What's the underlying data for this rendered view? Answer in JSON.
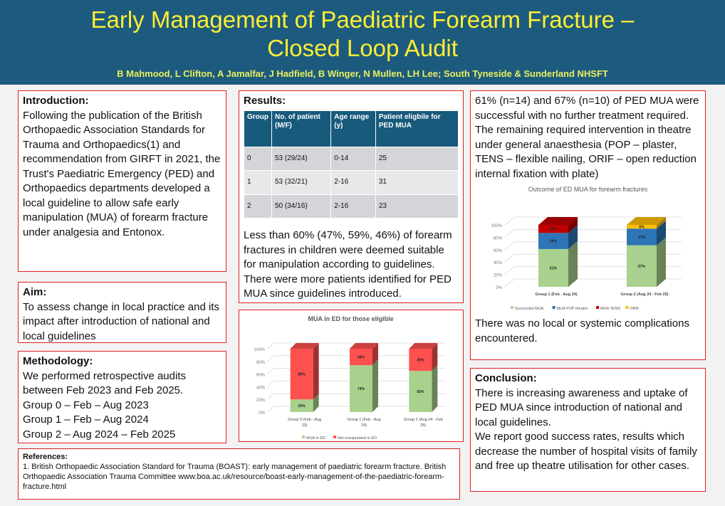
{
  "header": {
    "title_line1": "Early Management of Paediatric Forearm Fracture –",
    "title_line2": "Closed Loop Audit",
    "authors": "B Mahmood, L Clifton, A Jamalfar, J Hadfield, B Winger, N Mullen, LH Lee; South Tyneside & Sunderland NHSFT"
  },
  "intro": {
    "heading": "Introduction:",
    "text": "Following the publication of the British Orthopaedic Association Standards for Trauma and Orthopaedics(1) and recommendation from GIRFT in 2021, the Trust's Paediatric Emergency (PED) and Orthopaedics departments developed a local guideline to allow safe early manipulation (MUA) of forearm fracture under analgesia and Entonox."
  },
  "aim": {
    "heading": "Aim:",
    "text": "To assess change in local practice and its impact after introduction of national and local guidelines"
  },
  "methodology": {
    "heading": "Methodology:",
    "lines": [
      "We performed retrospective audits between Feb 2023 and Feb 2025.",
      "Group 0 – Feb – Aug 2023",
      "Group 1 – Feb – Aug 2024",
      "Group 2 – Aug 2024 – Feb 2025"
    ]
  },
  "references": {
    "heading": "References:",
    "text": "1. British Orthopaedic Association Standard for Trauma (BOAST): early management of paediatric forearm fracture. British Orthopaedic Association Trauma Committee www.boa.ac.uk/resource/boast-early-management-of-the-paediatric-forearm-fracture.html"
  },
  "results": {
    "heading": "Results:",
    "columns": [
      "Group",
      "No. of patient (M/F)",
      "Age range (y)",
      "Patient eligbile for PED MUA"
    ],
    "rows": [
      [
        "0",
        "53 (29/24)",
        "0-14",
        "25"
      ],
      [
        "1",
        "53 (32/21)",
        "2-16",
        "31"
      ],
      [
        "2",
        "50 (34/16)",
        "2-16",
        "23"
      ]
    ],
    "text1": "Less than 60% (47%, 59%, 46%) of forearm fractures in children were deemed suitable for manipulation according to guidelines.",
    "text2": "There were more patients identified for PED MUA since guidelines introduced."
  },
  "outcome": {
    "text1": "61% (n=14) and 67% (n=10) of PED MUA were successful with no further treatment required.",
    "text2": "The remaining required intervention in theatre under general anaesthesia (POP – plaster, TENS – flexible nailing, ORIF – open reduction internal fixation with plate)",
    "text3": "There was no local or systemic complications encountered."
  },
  "conclusion": {
    "heading": "Conclusion:",
    "text1": "There is increasing awareness and uptake of PED MUA since introduction of national and local guidelines.",
    "text2": "We report good success rates, results which decrease the number of hospital visits of family and free up theatre utilisation for other cases."
  },
  "chart_data": [
    {
      "type": "bar",
      "stacked": true,
      "title": "MUA in ED for those eligible",
      "categories": [
        "Group 0 (Feb - Aug 23)",
        "Group 1 (Feb - Aug 24)",
        "Group 2 (Aug 24 - Feb 25)"
      ],
      "series": [
        {
          "name": "MUA in ED",
          "values": [
            20,
            74,
            65
          ],
          "color": "#a9d18e"
        },
        {
          "name": "Not manipulated in ED",
          "values": [
            80,
            26,
            35
          ],
          "color": "#ff5050"
        }
      ],
      "ylim": [
        0,
        100
      ],
      "yticks": [
        "0%",
        "20%",
        "40%",
        "60%",
        "80%",
        "100%"
      ],
      "legend": "bottom",
      "grid": true
    },
    {
      "type": "bar",
      "stacked": true,
      "title": "Outcome of ED MUA for forearm fractures",
      "categories": [
        "Group 1 (Feb - Aug 24)",
        "Group 2 (Aug 24 - Feb 25)"
      ],
      "series": [
        {
          "name": "Successful MUA",
          "values": [
            61,
            67
          ],
          "color": "#a9d18e"
        },
        {
          "name": "MUA POP theatre",
          "values": [
            26,
            27
          ],
          "color": "#2e75b6"
        },
        {
          "name": "MUA TENS",
          "values": [
            13,
            0
          ],
          "color": "#c00000"
        },
        {
          "name": "ORIF",
          "values": [
            0,
            6
          ],
          "color": "#ffc000"
        }
      ],
      "ylim": [
        0,
        100
      ],
      "yticks": [
        "0%",
        "20%",
        "40%",
        "60%",
        "80%",
        "100%"
      ],
      "legend": "bottom",
      "grid": true
    }
  ]
}
